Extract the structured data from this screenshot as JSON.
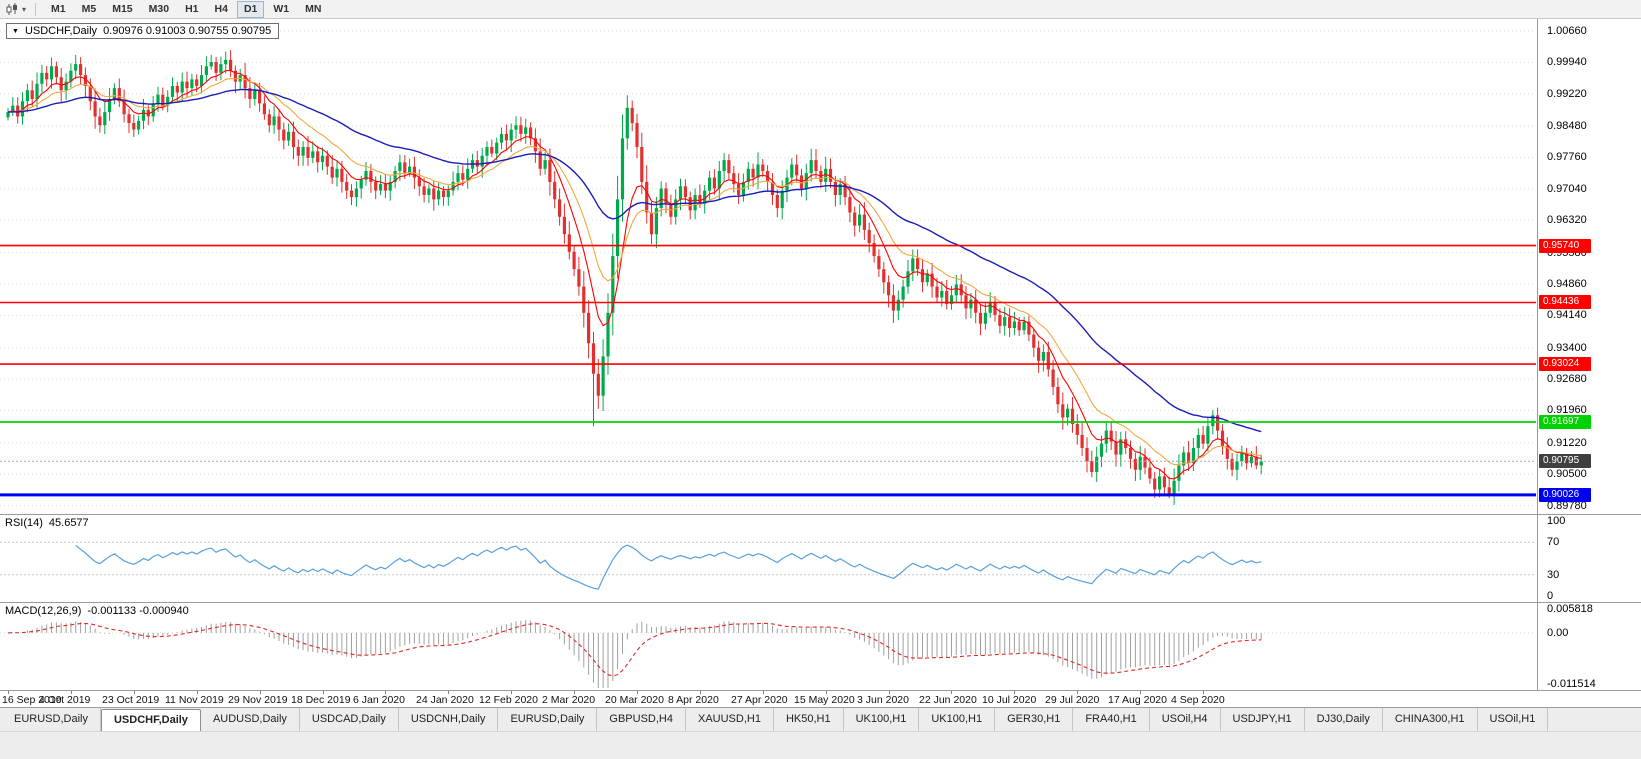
{
  "toolbar": {
    "timeframes": [
      "M1",
      "M5",
      "M15",
      "M30",
      "H1",
      "H4",
      "D1",
      "W1",
      "MN"
    ],
    "active_timeframe": "D1"
  },
  "title_box": {
    "symbol": "USDCHF,Daily",
    "ohlc": "0.90976 0.91003 0.90755 0.90795"
  },
  "price_axis": {
    "labels": [
      "1.00660",
      "0.99940",
      "0.99220",
      "0.98480",
      "0.97760",
      "0.97040",
      "0.96320",
      "0.95580",
      "0.94860",
      "0.94140",
      "0.93400",
      "0.92680",
      "0.91960",
      "0.91220",
      "0.90500",
      "0.89780"
    ]
  },
  "hlines": [
    {
      "price": 0.9574,
      "label": "0.95740",
      "color": "#FF0000",
      "width": 1.6
    },
    {
      "price": 0.94436,
      "label": "0.94436",
      "color": "#FF0000",
      "width": 1.6
    },
    {
      "price": 0.93024,
      "label": "0.93024",
      "color": "#FF0000",
      "width": 1.6
    },
    {
      "price": 0.91697,
      "label": "0.91697",
      "color": "#00D200",
      "width": 1.8
    },
    {
      "price": 0.90026,
      "label": "0.90026",
      "color": "#0000F0",
      "width": 3
    }
  ],
  "bid": {
    "price": 0.90795,
    "label": "0.90795",
    "box_color": "#3F3F3F",
    "line_color": "#A8A8A8"
  },
  "rsi": {
    "name": "RSI(14)",
    "value": "45.6577",
    "levels": [
      "100",
      "70",
      "30",
      "0"
    ],
    "line_color": "#58A0DC"
  },
  "macd": {
    "name": "MACD(12,26,9)",
    "values": "-0.001133 -0.000940",
    "axis": [
      "0.005818",
      "0.00",
      "-0.011514"
    ],
    "hist_color": "#A0A0A0",
    "signal_color": "#E02828"
  },
  "date_axis": {
    "labels": [
      "16 Sep 2019",
      "4 Oct 2019",
      "23 Oct 2019",
      "11 Nov 2019",
      "29 Nov 2019",
      "18 Dec 2019",
      "6 Jan 2020",
      "24 Jan 2020",
      "12 Feb 2020",
      "2 Mar 2020",
      "20 Mar 2020",
      "8 Apr 2020",
      "27 Apr 2020",
      "15 May 2020",
      "3 Jun 2020",
      "22 Jun 2020",
      "10 Jul 2020",
      "29 Jul 2020",
      "17 Aug 2020",
      "4 Sep 2020"
    ]
  },
  "tabs": {
    "items": [
      "EURUSD,Daily",
      "USDCHF,Daily",
      "AUDUSD,Daily",
      "USDCAD,Daily",
      "USDCNH,Daily",
      "EURUSD,Daily",
      "GBPUSD,H4",
      "XAUUSD,H1",
      "HK50,H1",
      "UK100,H1",
      "UK100,H1",
      "GER30,H1",
      "FRA40,H1",
      "USOil,H4",
      "USDJPY,H1",
      "DJ30,Daily",
      "CHINA300,H1",
      "USOil,H1"
    ],
    "active_index": 1
  },
  "chart_data": {
    "type": "candlestick",
    "symbol": "USDCHF",
    "timeframe": "Daily",
    "up_color": "#00A94B",
    "down_color": "#E03030",
    "x_labels_every": 13,
    "ma": [
      {
        "type": "ema",
        "period": 8,
        "color": "#FF0000",
        "width": 1.1
      },
      {
        "type": "ema",
        "period": 16,
        "color": "#EFA93F",
        "width": 1.1
      },
      {
        "type": "ema",
        "period": 45,
        "color": "#1C1CB8",
        "width": 1.4
      }
    ],
    "closes": [
      0.988,
      0.9895,
      0.987,
      0.9905,
      0.993,
      0.991,
      0.9945,
      0.997,
      0.9955,
      0.9985,
      0.996,
      0.993,
      0.995,
      0.9975,
      0.999,
      0.9965,
      0.994,
      0.9905,
      0.987,
      0.985,
      0.988,
      0.991,
      0.9935,
      0.9905,
      0.9875,
      0.9855,
      0.984,
      0.986,
      0.9885,
      0.987,
      0.99,
      0.992,
      0.9895,
      0.9915,
      0.994,
      0.9925,
      0.995,
      0.9935,
      0.9955,
      0.994,
      0.9965,
      0.9985,
      0.9995,
      0.997,
      0.999,
      1.0,
      0.9975,
      0.995,
      0.9965,
      0.9935,
      0.991,
      0.993,
      0.99,
      0.9875,
      0.985,
      0.987,
      0.984,
      0.9815,
      0.9835,
      0.98,
      0.978,
      0.98,
      0.9775,
      0.979,
      0.9765,
      0.978,
      0.9755,
      0.973,
      0.975,
      0.972,
      0.97,
      0.9685,
      0.9705,
      0.9725,
      0.9745,
      0.972,
      0.97,
      0.9715,
      0.97,
      0.972,
      0.9745,
      0.9765,
      0.974,
      0.9755,
      0.973,
      0.971,
      0.969,
      0.9705,
      0.968,
      0.97,
      0.9685,
      0.97,
      0.972,
      0.974,
      0.9725,
      0.975,
      0.977,
      0.9755,
      0.978,
      0.98,
      0.9785,
      0.981,
      0.983,
      0.9815,
      0.984,
      0.985,
      0.983,
      0.9845,
      0.982,
      0.979,
      0.975,
      0.977,
      0.972,
      0.968,
      0.964,
      0.96,
      0.956,
      0.952,
      0.948,
      0.942,
      0.935,
      0.928,
      0.923,
      0.932,
      0.942,
      0.955,
      0.968,
      0.982,
      0.989,
      0.9855,
      0.98,
      0.972,
      0.965,
      0.96,
      0.966,
      0.9705,
      0.967,
      0.964,
      0.968,
      0.971,
      0.9685,
      0.9655,
      0.969,
      0.967,
      0.97,
      0.973,
      0.9705,
      0.9745,
      0.977,
      0.974,
      0.9715,
      0.969,
      0.972,
      0.975,
      0.973,
      0.976,
      0.9745,
      0.972,
      0.969,
      0.966,
      0.97,
      0.973,
      0.976,
      0.9735,
      0.9705,
      0.974,
      0.977,
      0.9745,
      0.972,
      0.975,
      0.972,
      0.969,
      0.9715,
      0.9685,
      0.965,
      0.962,
      0.9645,
      0.961,
      0.958,
      0.955,
      0.952,
      0.949,
      0.946,
      0.9425,
      0.945,
      0.948,
      0.9515,
      0.9545,
      0.952,
      0.949,
      0.951,
      0.948,
      0.9455,
      0.947,
      0.944,
      0.946,
      0.9485,
      0.946,
      0.943,
      0.945,
      0.942,
      0.9395,
      0.942,
      0.9445,
      0.9415,
      0.939,
      0.941,
      0.9385,
      0.94,
      0.938,
      0.94,
      0.937,
      0.934,
      0.931,
      0.933,
      0.929,
      0.925,
      0.921,
      0.918,
      0.92,
      0.9165,
      0.914,
      0.911,
      0.908,
      0.9055,
      0.909,
      0.912,
      0.915,
      0.9125,
      0.9095,
      0.913,
      0.911,
      0.9085,
      0.906,
      0.909,
      0.9065,
      0.904,
      0.9015,
      0.9045,
      0.902,
      0.9,
      0.9035,
      0.907,
      0.91,
      0.9075,
      0.911,
      0.914,
      0.912,
      0.916,
      0.9185,
      0.915,
      0.9115,
      0.9085,
      0.906,
      0.908,
      0.91,
      0.9075,
      0.909,
      0.907,
      0.90795
    ],
    "overrides": {
      "low": {
        "121": 0.916,
        "240": 0.8995
      },
      "high": {
        "249": 0.9197
      }
    }
  }
}
